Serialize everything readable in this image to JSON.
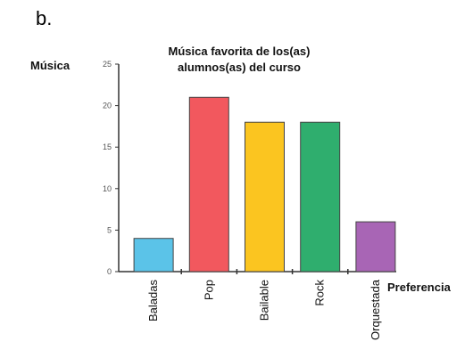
{
  "panel_label": "b.",
  "chart_data": {
    "type": "bar",
    "title_lines": [
      "Música favorita de los(as)",
      "alumnos(as) del curso"
    ],
    "ylabel": "Música",
    "xlabel": "Preferencia",
    "categories": [
      "Baladas",
      "Pop",
      "Bailable",
      "Rock",
      "Orquestada"
    ],
    "values": [
      4,
      21,
      18,
      18,
      6
    ],
    "colors": [
      "#5bc3e8",
      "#f2585e",
      "#fbc520",
      "#2fae6e",
      "#a865b5"
    ],
    "ylim": [
      0,
      25
    ],
    "yticks": [
      0,
      5,
      10,
      15,
      20,
      25
    ],
    "grid": false
  }
}
